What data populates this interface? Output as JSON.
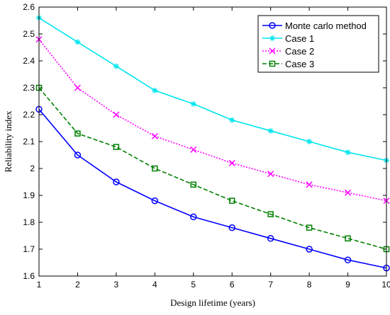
{
  "chart_data": {
    "type": "line",
    "title": "",
    "xlabel": "Design lifetime (years)",
    "ylabel": "Reliability index",
    "x": [
      1,
      2,
      3,
      4,
      5,
      6,
      7,
      8,
      9,
      10
    ],
    "xlim": [
      1,
      10
    ],
    "ylim": [
      1.6,
      2.6
    ],
    "xticks": [
      "1",
      "2",
      "3",
      "4",
      "5",
      "6",
      "7",
      "8",
      "9",
      "10"
    ],
    "yticks": [
      "1.6",
      "1.7",
      "1.8",
      "1.9",
      "2",
      "2.1",
      "2.2",
      "2.3",
      "2.4",
      "2.5",
      "2.6"
    ],
    "grid": false,
    "legend_position": "top-right",
    "series": [
      {
        "name": "Monte carlo method",
        "color": "#0000ff",
        "marker": "circle",
        "line_style": "solid",
        "values": [
          2.22,
          2.05,
          1.95,
          1.88,
          1.82,
          1.78,
          1.74,
          1.7,
          1.66,
          1.63
        ]
      },
      {
        "name": "Case 1",
        "color": "#00e5ee",
        "marker": "asterisk",
        "line_style": "solid",
        "values": [
          2.56,
          2.47,
          2.38,
          2.29,
          2.24,
          2.18,
          2.14,
          2.1,
          2.06,
          2.03
        ]
      },
      {
        "name": "Case 2",
        "color": "#ff00ff",
        "marker": "cross",
        "line_style": "dotted",
        "values": [
          2.48,
          2.3,
          2.2,
          2.12,
          2.07,
          2.02,
          1.98,
          1.94,
          1.91,
          1.88
        ]
      },
      {
        "name": "Case 3",
        "color": "#008000",
        "marker": "square",
        "line_style": "dashed",
        "values": [
          2.3,
          2.13,
          2.08,
          2.0,
          1.94,
          1.88,
          1.83,
          1.78,
          1.74,
          1.7
        ]
      }
    ]
  }
}
